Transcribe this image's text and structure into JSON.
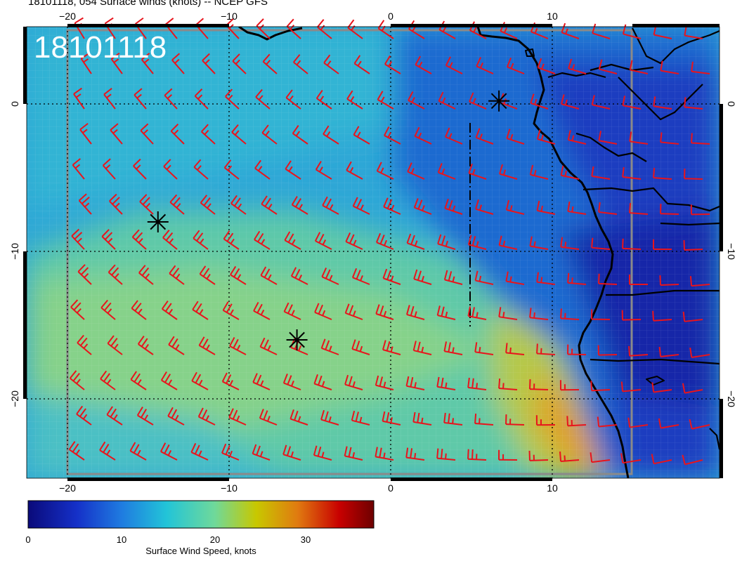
{
  "title": "18101118, 054 Surface winds (knots) -- NCEP GFS",
  "stamp": "18101118",
  "map": {
    "lon_range": [
      -22.5,
      20.5
    ],
    "lat_range": [
      -25.2,
      5.2
    ],
    "lon_ticks": [
      -20,
      -10,
      0,
      10
    ],
    "lat_ticks": [
      0,
      -10,
      -20
    ],
    "lon_tick_labels": [
      "−20",
      "−10",
      "0",
      "10"
    ],
    "lat_tick_labels": [
      "0",
      "−10",
      "−20"
    ],
    "barb_color": "#e8141c",
    "coast_color": "#000000"
  },
  "markers": [
    {
      "name": "asterisk-marker-1",
      "lon": -14.4,
      "lat": -8.0
    },
    {
      "name": "asterisk-marker-2",
      "lon": -5.8,
      "lat": -16.0
    },
    {
      "name": "asterisk-marker-3",
      "lon": 6.7,
      "lat": 0.2
    }
  ],
  "colorbar": {
    "title": "Surface Wind Speed, knots",
    "range": [
      0,
      37
    ],
    "ticks": [
      0,
      10,
      20,
      30
    ],
    "tick_labels": [
      "0",
      "10",
      "20",
      "30"
    ],
    "stops": [
      "#0a0a7a",
      "#1530c8",
      "#1f7be0",
      "#22c4d8",
      "#6fd99a",
      "#c8c800",
      "#e07a10",
      "#c80000",
      "#6e0000"
    ]
  }
}
